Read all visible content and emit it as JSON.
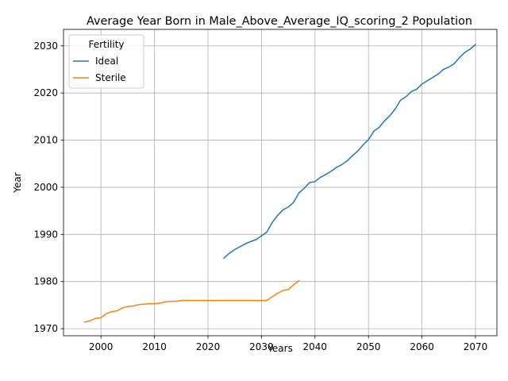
{
  "chart_data": {
    "type": "line",
    "title": "Average Year Born in Male_Above_Average_IQ_scoring_2 Population",
    "xlabel": "Years",
    "ylabel": "Year",
    "xlim": [
      1993.0,
      2074.0
    ],
    "ylim": [
      1968.5,
      2033.5
    ],
    "xticks": [
      2000,
      2010,
      2020,
      2030,
      2040,
      2050,
      2060,
      2070
    ],
    "yticks": [
      1970,
      1980,
      1990,
      2000,
      2010,
      2020,
      2030
    ],
    "grid": true,
    "legend": {
      "title": "Fertility",
      "placement": "top-left"
    },
    "series": [
      {
        "name": "Ideal",
        "color": "#1f77b4",
        "x": [
          2023,
          2024,
          2025,
          2026,
          2027,
          2028,
          2029,
          2030,
          2031,
          2032,
          2033,
          2034,
          2035,
          2036,
          2037,
          2038,
          2039,
          2040,
          2041,
          2042,
          2043,
          2044,
          2045,
          2046,
          2047,
          2048,
          2049,
          2050,
          2051,
          2052,
          2053,
          2054,
          2055,
          2056,
          2057,
          2058,
          2059,
          2060,
          2061,
          2062,
          2063,
          2064,
          2065,
          2066,
          2067,
          2068,
          2069,
          2070
        ],
        "y": [
          1985.0,
          1986.0,
          1986.8,
          1987.4,
          1988.0,
          1988.5,
          1988.9,
          1989.7,
          1990.5,
          1992.5,
          1994.0,
          1995.2,
          1995.8,
          1996.8,
          1998.8,
          1999.8,
          2001.0,
          2001.2,
          2002.1,
          2002.7,
          2003.4,
          2004.2,
          2004.8,
          2005.6,
          2006.7,
          2007.7,
          2009.0,
          2010.1,
          2011.9,
          2012.7,
          2014.1,
          2015.2,
          2016.6,
          2018.5,
          2019.2,
          2020.3,
          2020.8,
          2021.9,
          2022.6,
          2023.3,
          2024.0,
          2025.0,
          2025.5,
          2026.2,
          2027.5,
          2028.6,
          2029.3,
          2030.3
        ]
      },
      {
        "name": "Sterile",
        "color": "#ff7f0e",
        "x": [
          1997,
          1998,
          1999,
          2000,
          2001,
          2002,
          2003,
          2004,
          2005,
          2006,
          2007,
          2008,
          2009,
          2010,
          2011,
          2012,
          2013,
          2014,
          2015,
          2016,
          2017,
          2018,
          2019,
          2020,
          2021,
          2022,
          2023,
          2024,
          2025,
          2026,
          2027,
          2028,
          2029,
          2030,
          2031,
          2032,
          2033,
          2034,
          2035,
          2036,
          2037
        ],
        "y": [
          1971.4,
          1971.7,
          1972.2,
          1972.3,
          1973.2,
          1973.6,
          1973.8,
          1974.4,
          1974.7,
          1974.8,
          1975.1,
          1975.2,
          1975.3,
          1975.3,
          1975.4,
          1975.7,
          1975.8,
          1975.8,
          1976.0,
          1976.0,
          1976.0,
          1976.0,
          1976.0,
          1976.0,
          1976.0,
          1976.0,
          1976.0,
          1976.0,
          1976.0,
          1976.0,
          1976.0,
          1976.0,
          1976.0,
          1976.0,
          1976.0,
          1976.8,
          1977.5,
          1978.1,
          1978.3,
          1979.3,
          1980.2
        ]
      }
    ]
  }
}
